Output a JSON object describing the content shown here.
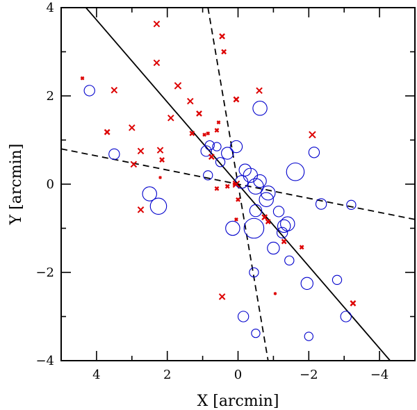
{
  "chart_data": {
    "type": "scatter",
    "xlabel": "X [arcmin]",
    "ylabel": "Y [arcmin]",
    "xlim": [
      5,
      -5
    ],
    "ylim": [
      -4,
      4
    ],
    "xticks": [
      4,
      2,
      0,
      -2,
      -4
    ],
    "yticks": [
      -4,
      -2,
      0,
      2,
      4
    ],
    "xtick_labels": [
      "4",
      "2",
      "0",
      "−2",
      "−4"
    ],
    "ytick_labels": [
      "−4",
      "−2",
      "0",
      "2",
      "4"
    ],
    "grid": false,
    "colors": {
      "circles": "#0000cc",
      "crosses": "#dd0000",
      "lines": "#000000"
    },
    "lines": [
      {
        "style": "solid",
        "points": [
          [
            4.3,
            4.0
          ],
          [
            -4.3,
            -4.0
          ]
        ]
      },
      {
        "style": "dashed",
        "points": [
          [
            5.0,
            0.8
          ],
          [
            -5.0,
            -0.8
          ]
        ]
      },
      {
        "style": "dashed",
        "points": [
          [
            0.85,
            4.0
          ],
          [
            -0.85,
            -4.0
          ]
        ]
      }
    ],
    "circles": [
      {
        "x": 4.2,
        "y": 2.12,
        "size": 0.15
      },
      {
        "x": 3.5,
        "y": 0.68,
        "size": 0.15
      },
      {
        "x": 2.5,
        "y": -0.22,
        "size": 0.2
      },
      {
        "x": 2.25,
        "y": -0.5,
        "size": 0.23
      },
      {
        "x": 0.9,
        "y": 0.75,
        "size": 0.15
      },
      {
        "x": 0.85,
        "y": 0.2,
        "size": 0.13
      },
      {
        "x": 0.8,
        "y": 0.88,
        "size": 0.13
      },
      {
        "x": 0.6,
        "y": 0.85,
        "size": 0.12
      },
      {
        "x": 0.5,
        "y": 0.5,
        "size": 0.13
      },
      {
        "x": 0.3,
        "y": 0.7,
        "size": 0.17
      },
      {
        "x": 0.05,
        "y": 0.85,
        "size": 0.17
      },
      {
        "x": -0.1,
        "y": 0.05,
        "size": 0.18
      },
      {
        "x": -0.2,
        "y": 0.32,
        "size": 0.17
      },
      {
        "x": -0.35,
        "y": 0.2,
        "size": 0.2
      },
      {
        "x": -0.5,
        "y": -0.05,
        "size": 0.22
      },
      {
        "x": -0.62,
        "y": 1.72,
        "size": 0.2
      },
      {
        "x": -0.62,
        "y": 0.07,
        "size": 0.18
      },
      {
        "x": -0.8,
        "y": -0.35,
        "size": 0.2
      },
      {
        "x": -0.85,
        "y": -0.2,
        "size": 0.2
      },
      {
        "x": -1.62,
        "y": 0.28,
        "size": 0.25
      },
      {
        "x": -1.15,
        "y": -0.62,
        "size": 0.15
      },
      {
        "x": -1.3,
        "y": -0.95,
        "size": 0.18
      },
      {
        "x": -1.4,
        "y": -0.9,
        "size": 0.2
      },
      {
        "x": -1.25,
        "y": -1.1,
        "size": 0.15
      },
      {
        "x": -1.0,
        "y": -1.45,
        "size": 0.17
      },
      {
        "x": -1.45,
        "y": -1.73,
        "size": 0.13
      },
      {
        "x": -1.95,
        "y": -2.25,
        "size": 0.17
      },
      {
        "x": -2.15,
        "y": 0.72,
        "size": 0.15
      },
      {
        "x": -2.35,
        "y": -0.45,
        "size": 0.15
      },
      {
        "x": -2.8,
        "y": -2.17,
        "size": 0.13
      },
      {
        "x": -3.05,
        "y": -3.0,
        "size": 0.15
      },
      {
        "x": -3.2,
        "y": -0.47,
        "size": 0.13
      },
      {
        "x": 0.15,
        "y": -1.0,
        "size": 0.2
      },
      {
        "x": -0.45,
        "y": -1.0,
        "size": 0.28
      },
      {
        "x": -0.5,
        "y": -0.6,
        "size": 0.17
      },
      {
        "x": -0.45,
        "y": -2.0,
        "size": 0.13
      },
      {
        "x": -0.15,
        "y": -3.0,
        "size": 0.15
      },
      {
        "x": -0.5,
        "y": -3.38,
        "size": 0.12
      },
      {
        "x": -2.0,
        "y": -3.45,
        "size": 0.12
      }
    ],
    "crosses": [
      {
        "x": 4.4,
        "y": 2.4,
        "size": 0.04
      },
      {
        "x": 3.5,
        "y": 2.13,
        "size": 0.08
      },
      {
        "x": 3.7,
        "y": 1.18,
        "size": 0.07
      },
      {
        "x": 3.0,
        "y": 1.28,
        "size": 0.08
      },
      {
        "x": 2.95,
        "y": 0.45,
        "size": 0.08
      },
      {
        "x": 2.75,
        "y": 0.75,
        "size": 0.08
      },
      {
        "x": 2.75,
        "y": -0.58,
        "size": 0.08
      },
      {
        "x": 2.3,
        "y": 3.63,
        "size": 0.08
      },
      {
        "x": 2.3,
        "y": 2.75,
        "size": 0.08
      },
      {
        "x": 2.2,
        "y": 0.77,
        "size": 0.08
      },
      {
        "x": 2.15,
        "y": 0.55,
        "size": 0.06
      },
      {
        "x": 2.2,
        "y": 0.15,
        "size": 0.03
      },
      {
        "x": 1.9,
        "y": 1.5,
        "size": 0.08
      },
      {
        "x": 1.7,
        "y": 2.23,
        "size": 0.09
      },
      {
        "x": 1.35,
        "y": 1.88,
        "size": 0.08
      },
      {
        "x": 1.3,
        "y": 1.15,
        "size": 0.06
      },
      {
        "x": 1.1,
        "y": 1.6,
        "size": 0.07
      },
      {
        "x": 0.95,
        "y": 1.12,
        "size": 0.04
      },
      {
        "x": 0.85,
        "y": 1.15,
        "size": 0.04
      },
      {
        "x": 0.75,
        "y": 0.62,
        "size": 0.07
      },
      {
        "x": 0.6,
        "y": 1.22,
        "size": 0.05
      },
      {
        "x": 0.55,
        "y": 1.4,
        "size": 0.04
      },
      {
        "x": 0.6,
        "y": -0.1,
        "size": 0.05
      },
      {
        "x": 0.45,
        "y": 3.35,
        "size": 0.07
      },
      {
        "x": 0.4,
        "y": 3.0,
        "size": 0.06
      },
      {
        "x": 0.3,
        "y": -0.05,
        "size": 0.05
      },
      {
        "x": 0.05,
        "y": 1.92,
        "size": 0.07
      },
      {
        "x": 0.05,
        "y": 0.0,
        "size": 0.09
      },
      {
        "x": 0.1,
        "y": 0.0,
        "size": 0.04
      },
      {
        "x": 0.0,
        "y": -0.35,
        "size": 0.05
      },
      {
        "x": 0.05,
        "y": -0.8,
        "size": 0.04
      },
      {
        "x": -0.6,
        "y": 2.12,
        "size": 0.08
      },
      {
        "x": 0.45,
        "y": -2.55,
        "size": 0.08
      },
      {
        "x": -0.75,
        "y": -0.75,
        "size": 0.07
      },
      {
        "x": -0.85,
        "y": -0.85,
        "size": 0.06
      },
      {
        "x": -1.05,
        "y": -2.48,
        "size": 0.03
      },
      {
        "x": -1.3,
        "y": -1.3,
        "size": 0.06
      },
      {
        "x": -1.8,
        "y": -1.43,
        "size": 0.05
      },
      {
        "x": -2.1,
        "y": 1.12,
        "size": 0.09
      },
      {
        "x": -3.25,
        "y": -2.7,
        "size": 0.07
      }
    ]
  }
}
